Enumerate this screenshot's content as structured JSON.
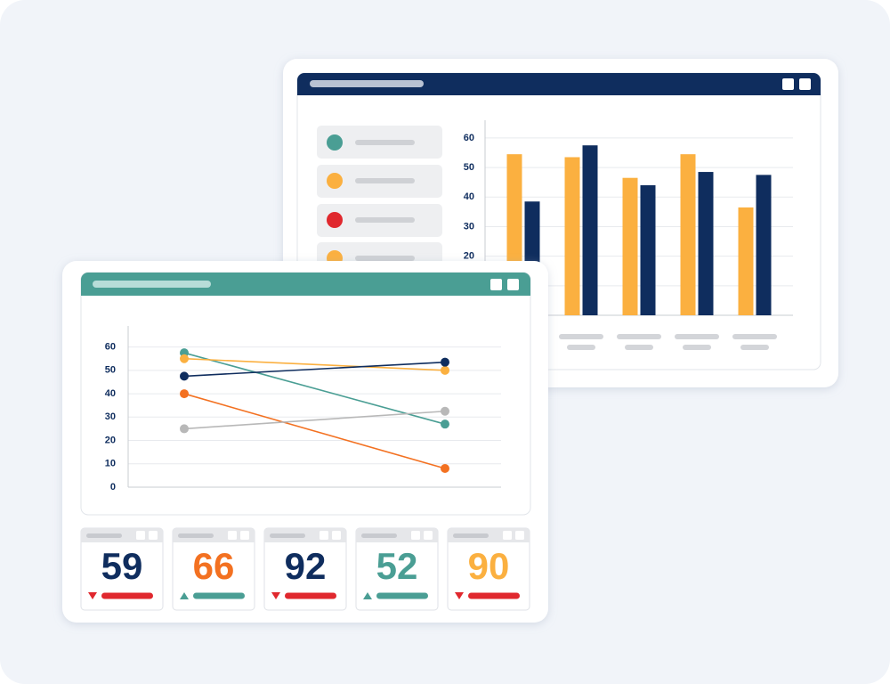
{
  "bar_chart": {
    "type": "bar",
    "ylim": [
      0,
      66
    ],
    "yticks": [
      0,
      10,
      20,
      30,
      40,
      50,
      60
    ],
    "grid": true,
    "series": [
      {
        "color": "#fbb040",
        "values": [
          54.5,
          53.5,
          46.5,
          54.5,
          36.5
        ]
      },
      {
        "color": "#0f2d5e",
        "values": [
          38.5,
          57.5,
          44,
          48.5,
          47.5
        ]
      }
    ]
  },
  "line_chart": {
    "type": "line",
    "ylim": [
      0,
      69
    ],
    "yticks": [
      0,
      10,
      20,
      30,
      40,
      50,
      60
    ],
    "grid": true,
    "series": [
      {
        "color": "#4a9e94",
        "values": [
          57.5,
          27
        ]
      },
      {
        "color": "#fbb040",
        "values": [
          55,
          50
        ]
      },
      {
        "color": "#0f2d5e",
        "values": [
          47.5,
          53.5
        ]
      },
      {
        "color": "#f37121",
        "values": [
          40,
          8
        ]
      },
      {
        "color": "#b8b8b8",
        "values": [
          25,
          32.5
        ]
      }
    ]
  },
  "kpis": [
    {
      "value": 59,
      "color": "#0f2d5e",
      "trend": "down"
    },
    {
      "value": 66,
      "color": "#f37121",
      "trend": "up"
    },
    {
      "value": 92,
      "color": "#0f2d5e",
      "trend": "down"
    },
    {
      "value": 52,
      "color": "#4a9e94",
      "trend": "up"
    },
    {
      "value": 90,
      "color": "#fbb040",
      "trend": "down"
    }
  ]
}
